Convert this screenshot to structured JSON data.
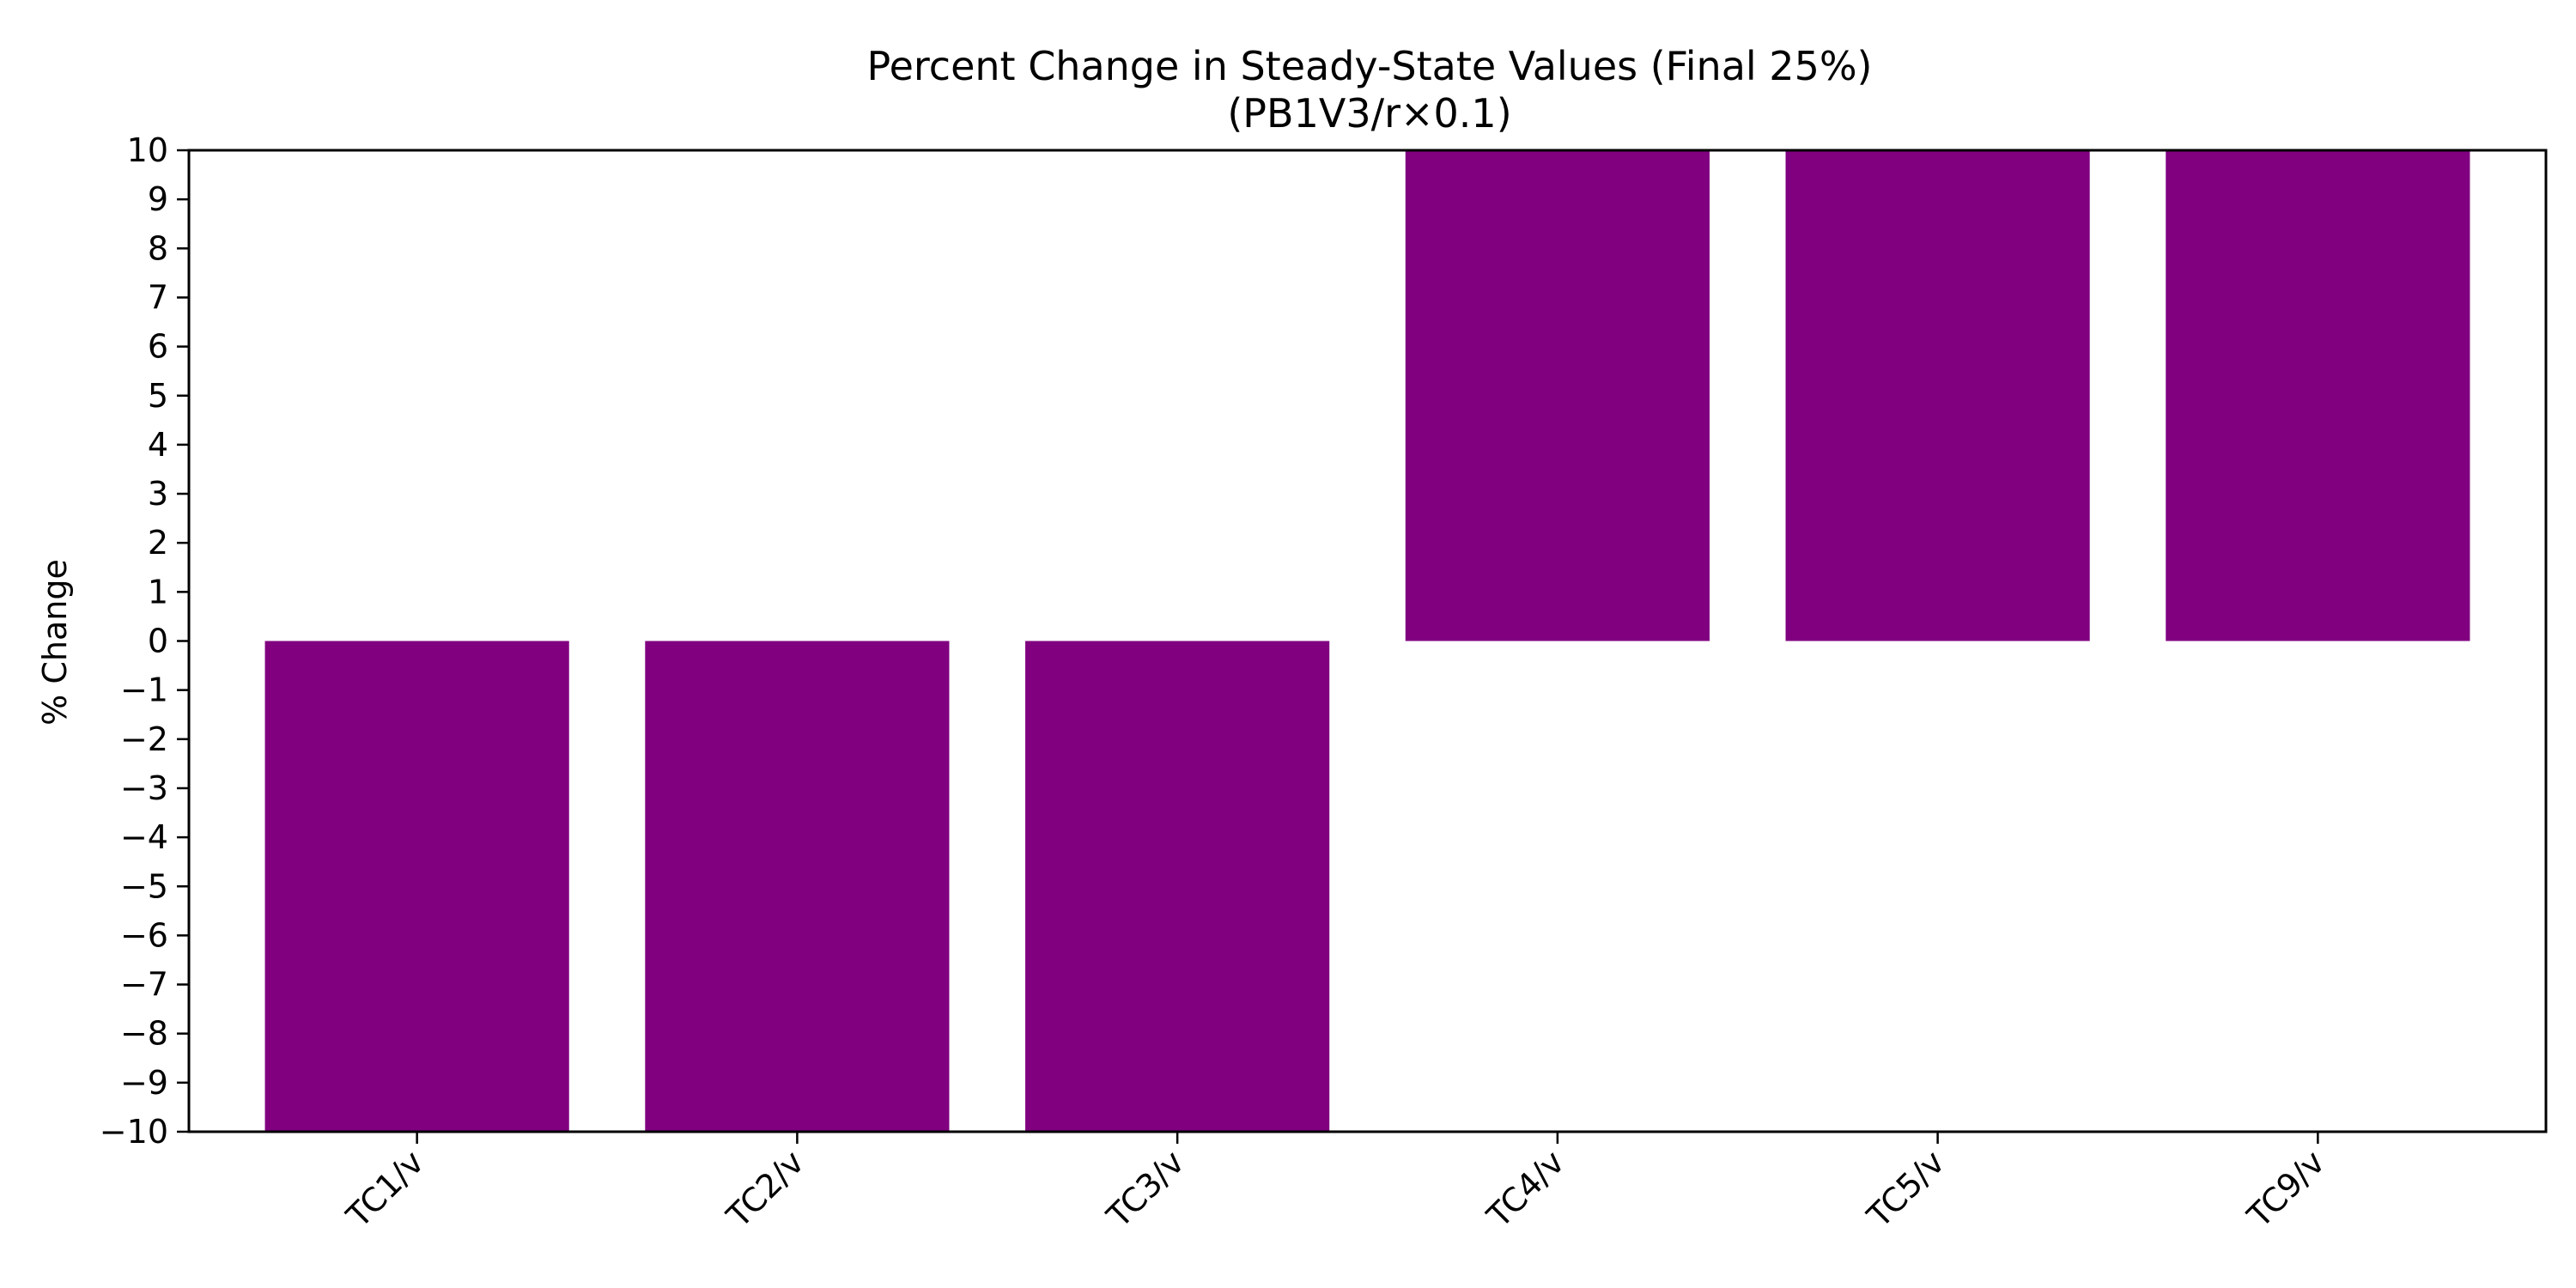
{
  "chart_data": {
    "type": "bar",
    "title": "Percent Change in Steady-State Values (Final 25%)",
    "subtitle": "(PB1V3/r×0.1)",
    "xlabel": "",
    "ylabel": "% Change",
    "categories": [
      "TC1/v",
      "TC2/v",
      "TC3/v",
      "TC4/v",
      "TC5/v",
      "TC9/v"
    ],
    "values": [
      -10,
      -10,
      -10,
      10,
      10,
      10
    ],
    "ylim": [
      -10,
      10
    ],
    "yticks": [
      -10,
      -9,
      -8,
      -7,
      -6,
      -5,
      -4,
      -3,
      -2,
      -1,
      0,
      1,
      2,
      3,
      4,
      5,
      6,
      7,
      8,
      9,
      10
    ],
    "ytick_labels": [
      "−10",
      "−9",
      "−8",
      "−7",
      "−6",
      "−5",
      "−4",
      "−3",
      "−2",
      "−1",
      "0",
      "1",
      "2",
      "3",
      "4",
      "5",
      "6",
      "7",
      "8",
      "9",
      "10"
    ],
    "bar_color": "#800080",
    "grid": false,
    "legend": "none"
  }
}
